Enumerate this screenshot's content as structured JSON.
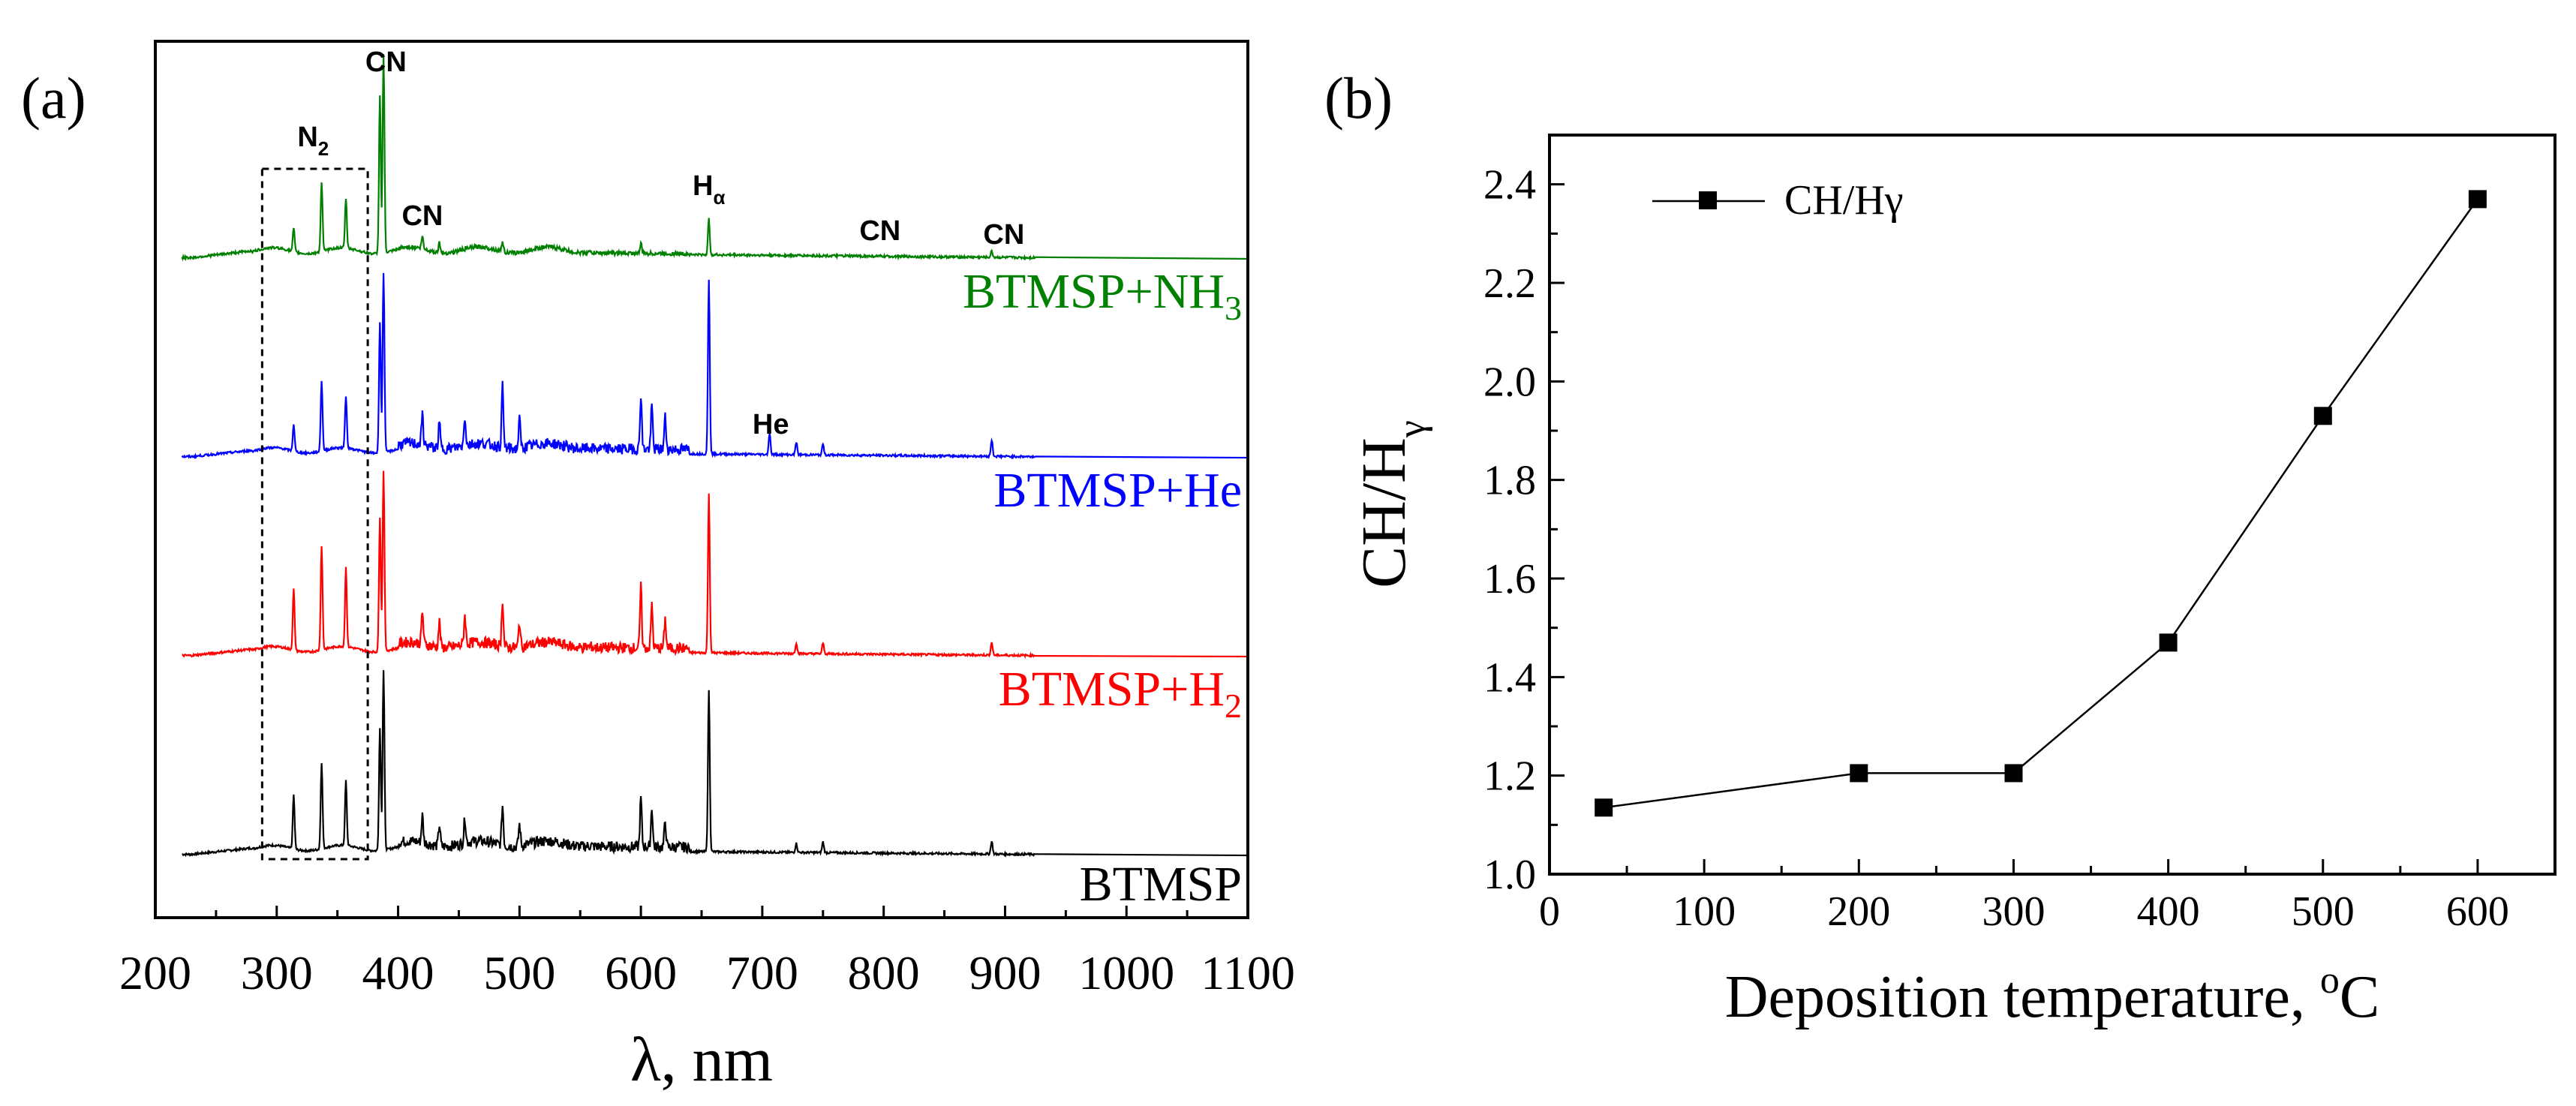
{
  "chart_data": [
    {
      "panel_label": "(a)",
      "type": "line",
      "title": "",
      "xlabel": "λ, nm",
      "ylabel": "",
      "xlim": [
        200,
        1100
      ],
      "xticks": [
        "200",
        "300",
        "400",
        "500",
        "600",
        "700",
        "800",
        "900",
        "1000",
        "1100"
      ],
      "yticks_visible": false,
      "series": [
        {
          "name": "BTMSP",
          "label": "BTMSP",
          "sub": "",
          "color": "#000000",
          "peaks": [
            [
              314,
              0.3
            ],
            [
              337,
              0.48
            ],
            [
              357,
              0.36
            ],
            [
              385,
              0.68
            ],
            [
              388,
              1.0
            ],
            [
              420,
              0.15
            ],
            [
              434,
              0.12
            ],
            [
              455,
              0.14
            ],
            [
              486,
              0.22
            ],
            [
              500,
              0.12
            ],
            [
              600,
              0.27
            ],
            [
              609,
              0.22
            ],
            [
              620,
              0.14
            ],
            [
              656,
              0.9
            ],
            [
              728,
              0.05
            ],
            [
              750,
              0.06
            ],
            [
              889,
              0.07
            ]
          ]
        },
        {
          "name": "BTMSP+H2",
          "label": "BTMSP+H",
          "sub": "2",
          "color": "#ff0000",
          "peaks": [
            [
              314,
              0.34
            ],
            [
              337,
              0.58
            ],
            [
              357,
              0.44
            ],
            [
              385,
              0.75
            ],
            [
              388,
              1.0
            ],
            [
              420,
              0.18
            ],
            [
              434,
              0.14
            ],
            [
              455,
              0.16
            ],
            [
              486,
              0.26
            ],
            [
              500,
              0.14
            ],
            [
              600,
              0.34
            ],
            [
              609,
              0.24
            ],
            [
              620,
              0.16
            ],
            [
              656,
              0.88
            ],
            [
              728,
              0.06
            ],
            [
              750,
              0.06
            ],
            [
              889,
              0.07
            ]
          ]
        },
        {
          "name": "BTMSP+He",
          "label": "BTMSP+He",
          "sub": "",
          "color": "#0000ff",
          "peaks": [
            [
              314,
              0.15
            ],
            [
              337,
              0.39
            ],
            [
              357,
              0.29
            ],
            [
              385,
              0.73
            ],
            [
              388,
              1.0
            ],
            [
              420,
              0.17
            ],
            [
              434,
              0.14
            ],
            [
              455,
              0.16
            ],
            [
              486,
              0.34
            ],
            [
              500,
              0.16
            ],
            [
              600,
              0.3
            ],
            [
              609,
              0.24
            ],
            [
              620,
              0.18
            ],
            [
              656,
              0.97
            ],
            [
              706,
              0.12
            ],
            [
              728,
              0.07
            ],
            [
              750,
              0.06
            ],
            [
              889,
              0.09
            ]
          ]
        },
        {
          "name": "BTMSP+NH3",
          "label": "BTMSP+NH",
          "sub": "3",
          "color": "#008000",
          "peaks": [
            [
              314,
              0.12
            ],
            [
              337,
              0.35
            ],
            [
              357,
              0.25
            ],
            [
              385,
              0.8
            ],
            [
              388,
              1.0
            ],
            [
              420,
              0.06
            ],
            [
              434,
              0.05
            ],
            [
              486,
              0.05
            ],
            [
              600,
              0.05
            ],
            [
              656,
              0.18
            ],
            [
              889,
              0.03
            ]
          ]
        }
      ],
      "annotations": [
        {
          "text": "CN",
          "sub": "",
          "x_nm": 390,
          "series": "BTMSP+NH3"
        },
        {
          "text": "N",
          "sub": "2",
          "x_nm": 330,
          "series": "BTMSP+NH3"
        },
        {
          "text": "CN",
          "sub": "",
          "x_nm": 420,
          "series": "BTMSP+NH3"
        },
        {
          "text": "H",
          "sub": "α",
          "x_nm": 656,
          "series": "BTMSP+NH3"
        },
        {
          "text": "CN",
          "sub": "",
          "x_nm": 797,
          "series": "BTMSP+NH3"
        },
        {
          "text": "CN",
          "sub": "",
          "x_nm": 899,
          "series": "BTMSP+NH3"
        },
        {
          "text": "He",
          "sub": "",
          "x_nm": 707,
          "series": "BTMSP+He"
        }
      ],
      "highlight_box_nm": [
        288,
        375
      ]
    },
    {
      "panel_label": "(b)",
      "type": "line",
      "title": "",
      "xlabel": "Deposition temperature, ",
      "xlabel_sup": "o",
      "xlabel_unit": "C",
      "ylabel": "CH/H",
      "ylabel_sub": "γ",
      "xlim": [
        0,
        650
      ],
      "ylim": [
        1.0,
        2.5
      ],
      "xticks": [
        0,
        100,
        200,
        300,
        400,
        500,
        600
      ],
      "xtick_labels": [
        "0",
        "100",
        "200",
        "300",
        "400",
        "500",
        "600"
      ],
      "yticks": [
        1.0,
        1.2,
        1.4,
        1.6,
        1.8,
        2.0,
        2.2,
        2.4
      ],
      "ytick_labels": [
        "1.0",
        "1.2",
        "1.4",
        "1.6",
        "1.8",
        "2.0",
        "2.2",
        "2.4"
      ],
      "legend": "top-left",
      "series": [
        {
          "name": "CH/Hγ",
          "marker": "square",
          "color": "#000000",
          "x": [
            35,
            200,
            300,
            400,
            500,
            600
          ],
          "y": [
            1.135,
            1.205,
            1.205,
            1.47,
            1.93,
            2.37
          ]
        }
      ]
    }
  ]
}
